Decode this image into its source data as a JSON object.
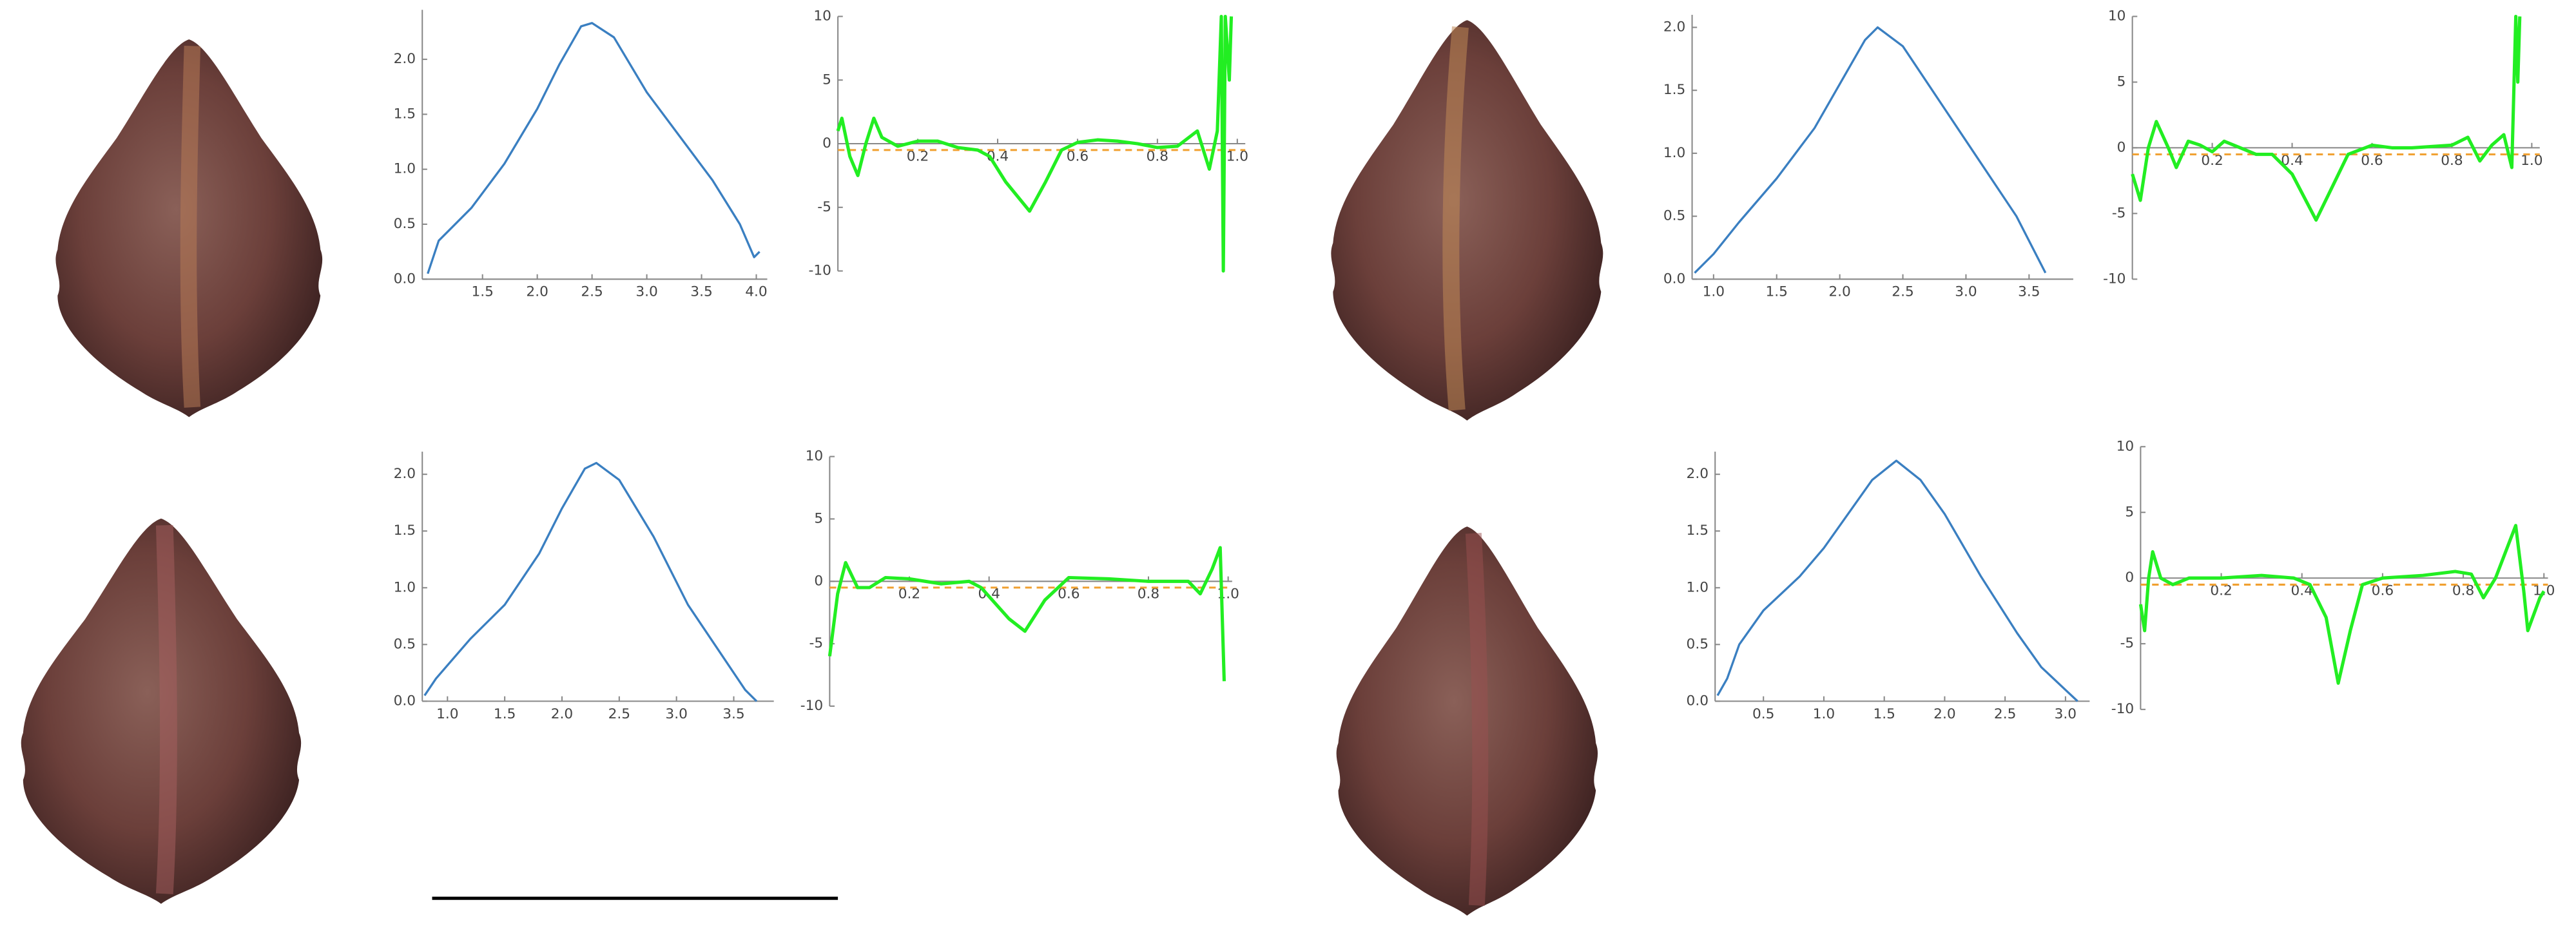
{
  "chart_data": [
    {
      "type": "line",
      "color": "#3a7fc1",
      "x": [
        1.0,
        1.1,
        1.2,
        1.4,
        1.7,
        2.0,
        2.2,
        2.4,
        2.5,
        2.7,
        3.0,
        3.3,
        3.6,
        3.85,
        3.98,
        4.03
      ],
      "values": [
        0.05,
        0.35,
        0.45,
        0.65,
        1.05,
        1.55,
        1.95,
        2.3,
        2.33,
        2.2,
        1.7,
        1.3,
        0.9,
        0.5,
        0.2,
        0.25
      ],
      "xlim": [
        0.95,
        4.1
      ],
      "ylim": [
        0,
        2.45
      ],
      "xticks": [
        1.5,
        {
          "value": 2,
          "label": "2.0"
        },
        2.5,
        {
          "value": 3,
          "label": "3.0"
        },
        3.5,
        {
          "value": 4,
          "label": "4.0"
        }
      ],
      "yticks": [
        {
          "value": 0,
          "label": "0.0"
        },
        0.5,
        {
          "value": 1,
          "label": "1.0"
        },
        1.5,
        {
          "value": 2,
          "label": "2.0"
        }
      ]
    },
    {
      "type": "line",
      "color": "#22ee22",
      "x": [
        0,
        0.01,
        0.03,
        0.05,
        0.07,
        0.09,
        0.11,
        0.15,
        0.2,
        0.25,
        0.3,
        0.35,
        0.38,
        0.42,
        0.48,
        0.52,
        0.56,
        0.6,
        0.65,
        0.7,
        0.75,
        0.8,
        0.85,
        0.9,
        0.93,
        0.95,
        0.96,
        0.965,
        0.97,
        0.98,
        0.985
      ],
      "values": [
        1,
        2,
        -1,
        -2.5,
        0,
        2,
        0.5,
        -0.2,
        0.2,
        0.2,
        -0.3,
        -0.5,
        -1,
        -3,
        -5.3,
        -3,
        -0.5,
        0.1,
        0.3,
        0.2,
        0,
        -0.3,
        -0.2,
        1,
        -2,
        1,
        10,
        -10,
        10,
        5,
        10
      ],
      "xlim": [
        0,
        1.02
      ],
      "ylim": [
        -10,
        10
      ],
      "xticks": [
        0.2,
        0.4,
        0.6,
        0.8,
        {
          "value": 1,
          "label": "1.0"
        }
      ],
      "yticks": [
        -10,
        -5,
        0,
        5,
        10
      ],
      "hline": -0.5,
      "hline_color": "#f0a030",
      "hline_style": "dashed"
    },
    {
      "type": "line",
      "color": "#3a7fc1",
      "x": [
        0.85,
        1.0,
        1.2,
        1.5,
        1.8,
        2.0,
        2.2,
        2.3,
        2.5,
        2.8,
        3.1,
        3.4,
        3.63
      ],
      "values": [
        0.05,
        0.2,
        0.45,
        0.8,
        1.2,
        1.55,
        1.9,
        2.0,
        1.85,
        1.4,
        0.95,
        0.5,
        0.05
      ],
      "xlim": [
        0.83,
        3.85
      ],
      "ylim": [
        0,
        2.1
      ],
      "xticks": [
        {
          "value": 1,
          "label": "1.0"
        },
        1.5,
        {
          "value": 2,
          "label": "2.0"
        },
        2.5,
        {
          "value": 3,
          "label": "3.0"
        },
        3.5
      ],
      "yticks": [
        {
          "value": 0,
          "label": "0.0"
        },
        0.5,
        {
          "value": 1,
          "label": "1.0"
        },
        1.5,
        {
          "value": 2,
          "label": "2.0"
        }
      ]
    },
    {
      "type": "line",
      "color": "#22ee22",
      "x": [
        0,
        0.02,
        0.04,
        0.06,
        0.09,
        0.11,
        0.14,
        0.17,
        0.2,
        0.23,
        0.27,
        0.31,
        0.35,
        0.4,
        0.46,
        0.5,
        0.54,
        0.6,
        0.65,
        0.7,
        0.8,
        0.84,
        0.87,
        0.9,
        0.93,
        0.95,
        0.96,
        0.965,
        0.97
      ],
      "values": [
        -2,
        -4,
        0,
        2,
        0,
        -1.5,
        0.5,
        0.2,
        -0.3,
        0.5,
        0,
        -0.5,
        -0.5,
        -2,
        -5.5,
        -3,
        -0.5,
        0.2,
        0,
        0,
        0.2,
        0.8,
        -1,
        0.2,
        1,
        -1.5,
        10,
        5,
        10
      ],
      "xlim": [
        0,
        1.02
      ],
      "ylim": [
        -10,
        10
      ],
      "xticks": [
        0.2,
        0.4,
        0.6,
        0.8,
        {
          "value": 1,
          "label": "1.0"
        }
      ],
      "yticks": [
        -10,
        -5,
        0,
        5,
        10
      ],
      "hline": -0.5,
      "hline_color": "#f0a030",
      "hline_style": "dashed"
    },
    {
      "type": "line",
      "color": "#3a7fc1",
      "x": [
        0.8,
        0.9,
        1.2,
        1.5,
        1.8,
        2.0,
        2.2,
        2.3,
        2.5,
        2.8,
        3.1,
        3.4,
        3.6,
        3.7
      ],
      "values": [
        0.05,
        0.2,
        0.55,
        0.85,
        1.3,
        1.7,
        2.05,
        2.1,
        1.95,
        1.45,
        0.85,
        0.4,
        0.1,
        0
      ],
      "xlim": [
        0.78,
        3.85
      ],
      "ylim": [
        0,
        2.2
      ],
      "xticks": [
        {
          "value": 1,
          "label": "1.0"
        },
        1.5,
        {
          "value": 2,
          "label": "2.0"
        },
        2.5,
        {
          "value": 3,
          "label": "3.0"
        },
        3.5
      ],
      "yticks": [
        {
          "value": 0,
          "label": "0.0"
        },
        0.5,
        {
          "value": 1,
          "label": "1.0"
        },
        1.5,
        {
          "value": 2,
          "label": "2.0"
        }
      ]
    },
    {
      "type": "line",
      "color": "#22ee22",
      "x": [
        0,
        0.02,
        0.04,
        0.07,
        0.1,
        0.14,
        0.2,
        0.28,
        0.35,
        0.38,
        0.45,
        0.49,
        0.54,
        0.6,
        0.7,
        0.8,
        0.9,
        0.93,
        0.96,
        0.98,
        0.99
      ],
      "values": [
        -6,
        -1,
        1.5,
        -0.5,
        -0.5,
        0.3,
        0.2,
        -0.2,
        0,
        -0.5,
        -3,
        -4,
        -1.5,
        0.3,
        0.2,
        0,
        0,
        -1,
        1,
        2.7,
        -8
      ],
      "xlim": [
        0,
        1.01
      ],
      "ylim": [
        -10,
        10
      ],
      "xticks": [
        0.2,
        0.4,
        0.6,
        0.8,
        {
          "value": 1,
          "label": "1.0"
        }
      ],
      "yticks": [
        -10,
        -5,
        0,
        5,
        10
      ],
      "hline": -0.5,
      "hline_color": "#f0a030",
      "hline_style": "dashed"
    },
    {
      "type": "line",
      "color": "#3a7fc1",
      "x": [
        0.12,
        0.2,
        0.3,
        0.5,
        0.8,
        1.0,
        1.2,
        1.4,
        1.6,
        1.8,
        2.0,
        2.3,
        2.6,
        2.8,
        3.0,
        3.1
      ],
      "values": [
        0.05,
        0.2,
        0.5,
        0.8,
        1.1,
        1.35,
        1.65,
        1.95,
        2.12,
        1.95,
        1.65,
        1.1,
        0.6,
        0.3,
        0.1,
        0
      ],
      "xlim": [
        0.1,
        3.2
      ],
      "ylim": [
        0,
        2.2
      ],
      "xticks": [
        0.5,
        {
          "value": 1,
          "label": "1.0"
        },
        1.5,
        {
          "value": 2,
          "label": "2.0"
        },
        2.5,
        {
          "value": 3,
          "label": "3.0"
        }
      ],
      "yticks": [
        {
          "value": 0,
          "label": "0.0"
        },
        0.5,
        {
          "value": 1,
          "label": "1.0"
        },
        1.5,
        {
          "value": 2,
          "label": "2.0"
        }
      ]
    },
    {
      "type": "line",
      "color": "#22ee22",
      "x": [
        0,
        0.01,
        0.02,
        0.03,
        0.05,
        0.08,
        0.12,
        0.2,
        0.3,
        0.38,
        0.42,
        0.46,
        0.49,
        0.52,
        0.55,
        0.6,
        0.7,
        0.78,
        0.82,
        0.85,
        0.88,
        0.93,
        0.95,
        0.96,
        0.99,
        1.0
      ],
      "values": [
        -2,
        -4,
        0,
        2,
        0,
        -0.5,
        0,
        0,
        0.2,
        0,
        -0.5,
        -3,
        -8,
        -4,
        -0.5,
        0,
        0.2,
        0.5,
        0.3,
        -1.5,
        0,
        4,
        -1,
        -4,
        -1.5,
        -1
      ],
      "xlim": [
        0,
        1.01
      ],
      "ylim": [
        -10,
        10
      ],
      "xticks": [
        0.2,
        0.4,
        0.6,
        0.8,
        {
          "value": 1,
          "label": "1.0"
        }
      ],
      "yticks": [
        -10,
        -5,
        0,
        5,
        10
      ],
      "hline": -0.5,
      "hline_color": "#f0a030",
      "hline_style": "dashed"
    }
  ]
}
